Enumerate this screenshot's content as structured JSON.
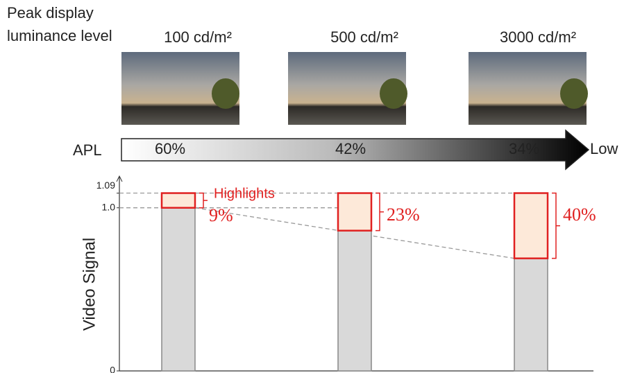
{
  "header": {
    "line1": "Peak display",
    "line2": "luminance level"
  },
  "columns": [
    "100 cd/m²",
    "500 cd/m²",
    "3000 cd/m²"
  ],
  "apl": {
    "label": "APL",
    "values": [
      "60%",
      "42%",
      "34%"
    ],
    "end": "Low"
  },
  "chart_data": {
    "type": "bar",
    "ylabel": "Video Signal",
    "ylim": [
      0,
      1.19
    ],
    "yticks": [
      0,
      {
        "value": 1,
        "label": "1.0"
      },
      1.09
    ],
    "series": [
      {
        "color": "#d9d9d9",
        "values": [
          1,
          0.86,
          0.69
        ]
      },
      {
        "name": "Highlights",
        "color": "#fde9d9",
        "values": [
          0.09,
          0.23,
          0.4
        ],
        "value_labels": [
          "9%",
          "23%",
          "40%"
        ]
      }
    ]
  }
}
